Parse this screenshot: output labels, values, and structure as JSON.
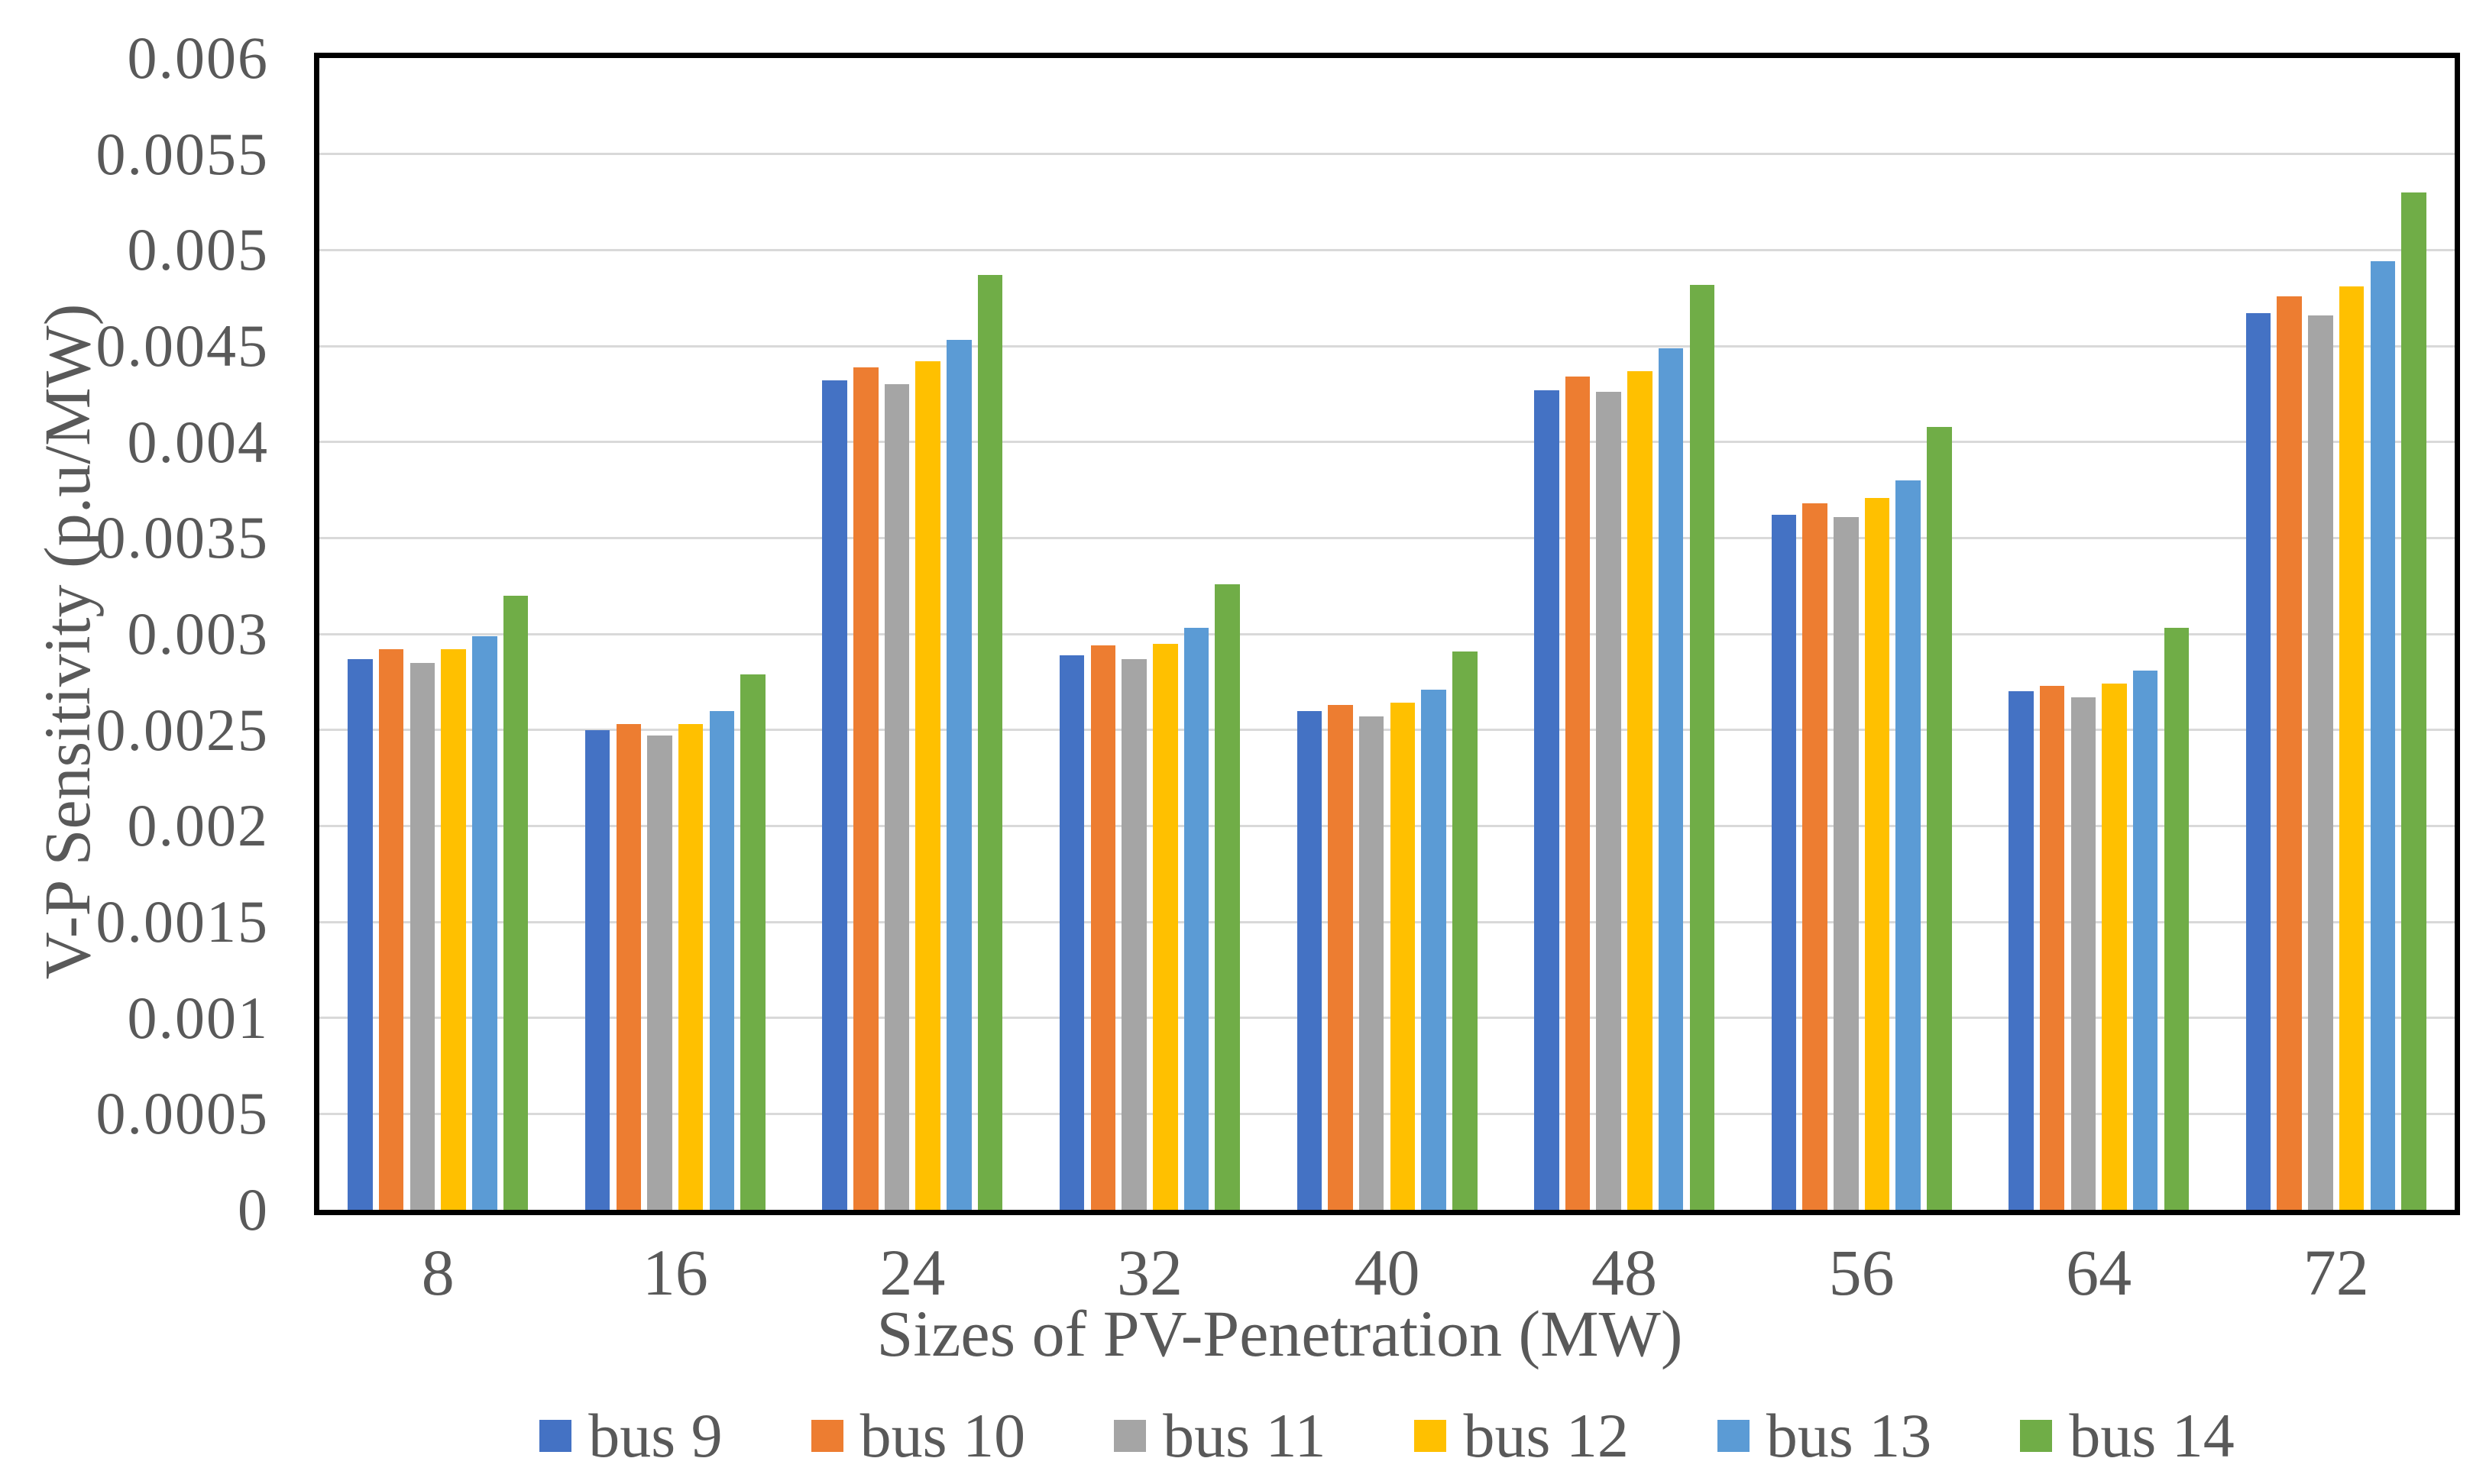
{
  "chart_data": {
    "type": "bar",
    "title": "",
    "xlabel": "Sizes of PV-Penetration (MW)",
    "ylabel": "V-P Sensitivity (p.u/MW)",
    "categories": [
      "8",
      "16",
      "24",
      "32",
      "40",
      "48",
      "56",
      "64",
      "72"
    ],
    "series": [
      {
        "name": "bus 9",
        "color": "#4472C4",
        "values": [
          0.00287,
          0.0025,
          0.00432,
          0.00289,
          0.0026,
          0.00427,
          0.00362,
          0.0027,
          0.00467
        ]
      },
      {
        "name": "bus 10",
        "color": "#ED7D31",
        "values": [
          0.00292,
          0.00253,
          0.00439,
          0.00294,
          0.00263,
          0.00434,
          0.00368,
          0.00273,
          0.00476
        ]
      },
      {
        "name": "bus 11",
        "color": "#A5A5A5",
        "values": [
          0.00285,
          0.00247,
          0.0043,
          0.00287,
          0.00257,
          0.00426,
          0.00361,
          0.00267,
          0.00466
        ]
      },
      {
        "name": "bus 12",
        "color": "#FFC000",
        "values": [
          0.00292,
          0.00253,
          0.00442,
          0.00295,
          0.00264,
          0.00437,
          0.00371,
          0.00274,
          0.00481
        ]
      },
      {
        "name": "bus 13",
        "color": "#5B9BD5",
        "values": [
          0.00299,
          0.0026,
          0.00453,
          0.00303,
          0.00271,
          0.00449,
          0.0038,
          0.00281,
          0.00494
        ]
      },
      {
        "name": "bus 14",
        "color": "#70AD47",
        "values": [
          0.0032,
          0.00279,
          0.00487,
          0.00326,
          0.00291,
          0.00482,
          0.00408,
          0.00303,
          0.0053
        ]
      }
    ],
    "ylim": [
      0,
      0.006
    ],
    "yticks": [
      {
        "v": 0,
        "label": "0"
      },
      {
        "v": 0.0005,
        "label": "0.0005"
      },
      {
        "v": 0.001,
        "label": "0.001"
      },
      {
        "v": 0.0015,
        "label": "0.0015"
      },
      {
        "v": 0.002,
        "label": "0.002"
      },
      {
        "v": 0.0025,
        "label": "0.0025"
      },
      {
        "v": 0.003,
        "label": "0.003"
      },
      {
        "v": 0.0035,
        "label": "0.0035"
      },
      {
        "v": 0.004,
        "label": "0.004"
      },
      {
        "v": 0.0045,
        "label": "0.0045"
      },
      {
        "v": 0.005,
        "label": "0.005"
      },
      {
        "v": 0.0055,
        "label": "0.0055"
      },
      {
        "v": 0.006,
        "label": "0.006"
      }
    ],
    "grid": true,
    "legend_position": "bottom",
    "gridline_color": "#D9D9D9",
    "axis_color": "#000000",
    "text_color": "#595959"
  }
}
